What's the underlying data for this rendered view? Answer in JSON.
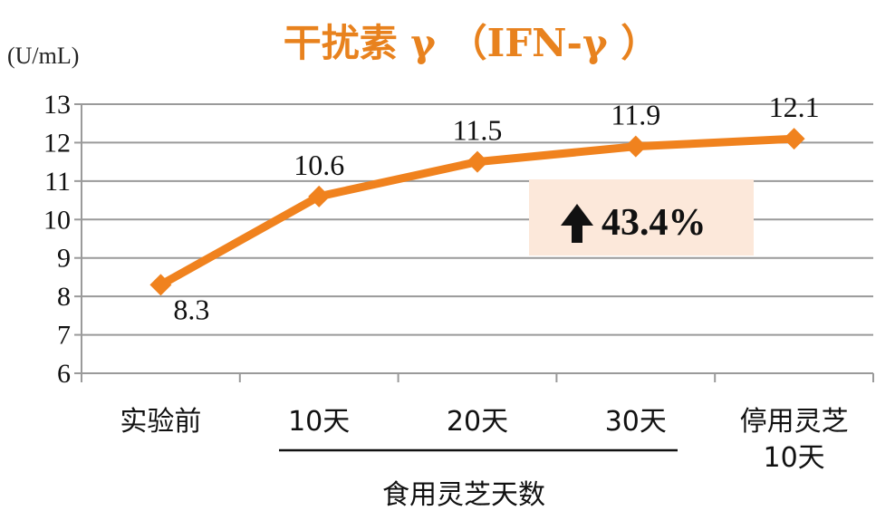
{
  "chart_data": {
    "type": "line",
    "title": "干扰素 γ （IFN-γ ）",
    "unit_label": "(U/mL)",
    "categories": [
      "实验前",
      "10天",
      "20天",
      "30天",
      "停用灵芝\n10天"
    ],
    "values": [
      8.3,
      10.6,
      11.5,
      11.9,
      12.1
    ],
    "data_labels": [
      "8.3",
      "10.6",
      "11.5",
      "11.9",
      "12.1"
    ],
    "ylim": [
      6,
      13
    ],
    "yticks": [
      "6",
      "7",
      "8",
      "9",
      "10",
      "11",
      "12",
      "13"
    ],
    "grid": true,
    "xlabel": "食用灵芝天数",
    "annotation": "43.4%",
    "colors": {
      "line": "#F0821E",
      "title": "#E8821E",
      "callout_bg": "#FCE8DA",
      "grid": "#9a9a9a"
    }
  }
}
